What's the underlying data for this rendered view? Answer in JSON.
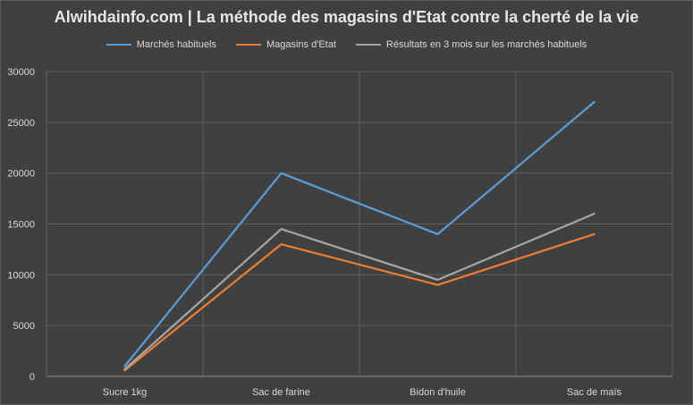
{
  "chart_data": {
    "type": "line",
    "title": "Alwihdainfo.com | La méthode des magasins d'Etat contre la cherté de la vie",
    "xlabel": "",
    "ylabel": "",
    "categories": [
      "Sucre 1kg",
      "Sac de farine",
      "Bidon d'huile",
      "Sac de maïs"
    ],
    "ylim": [
      0,
      30000
    ],
    "yticks": [
      0,
      5000,
      10000,
      15000,
      20000,
      25000,
      30000
    ],
    "grid": true,
    "legend_position": "top",
    "series": [
      {
        "name": "Marchés habituels",
        "color": "#5b9bd5",
        "values": [
          1000,
          20000,
          14000,
          27000
        ]
      },
      {
        "name": "Magasins d'Etat",
        "color": "#ed7d31",
        "values": [
          600,
          13000,
          9000,
          14000
        ]
      },
      {
        "name": "Résultats en 3 mois sur les marchés habituels",
        "color": "#a5a5a5",
        "values": [
          700,
          14500,
          9500,
          16000
        ]
      }
    ]
  }
}
